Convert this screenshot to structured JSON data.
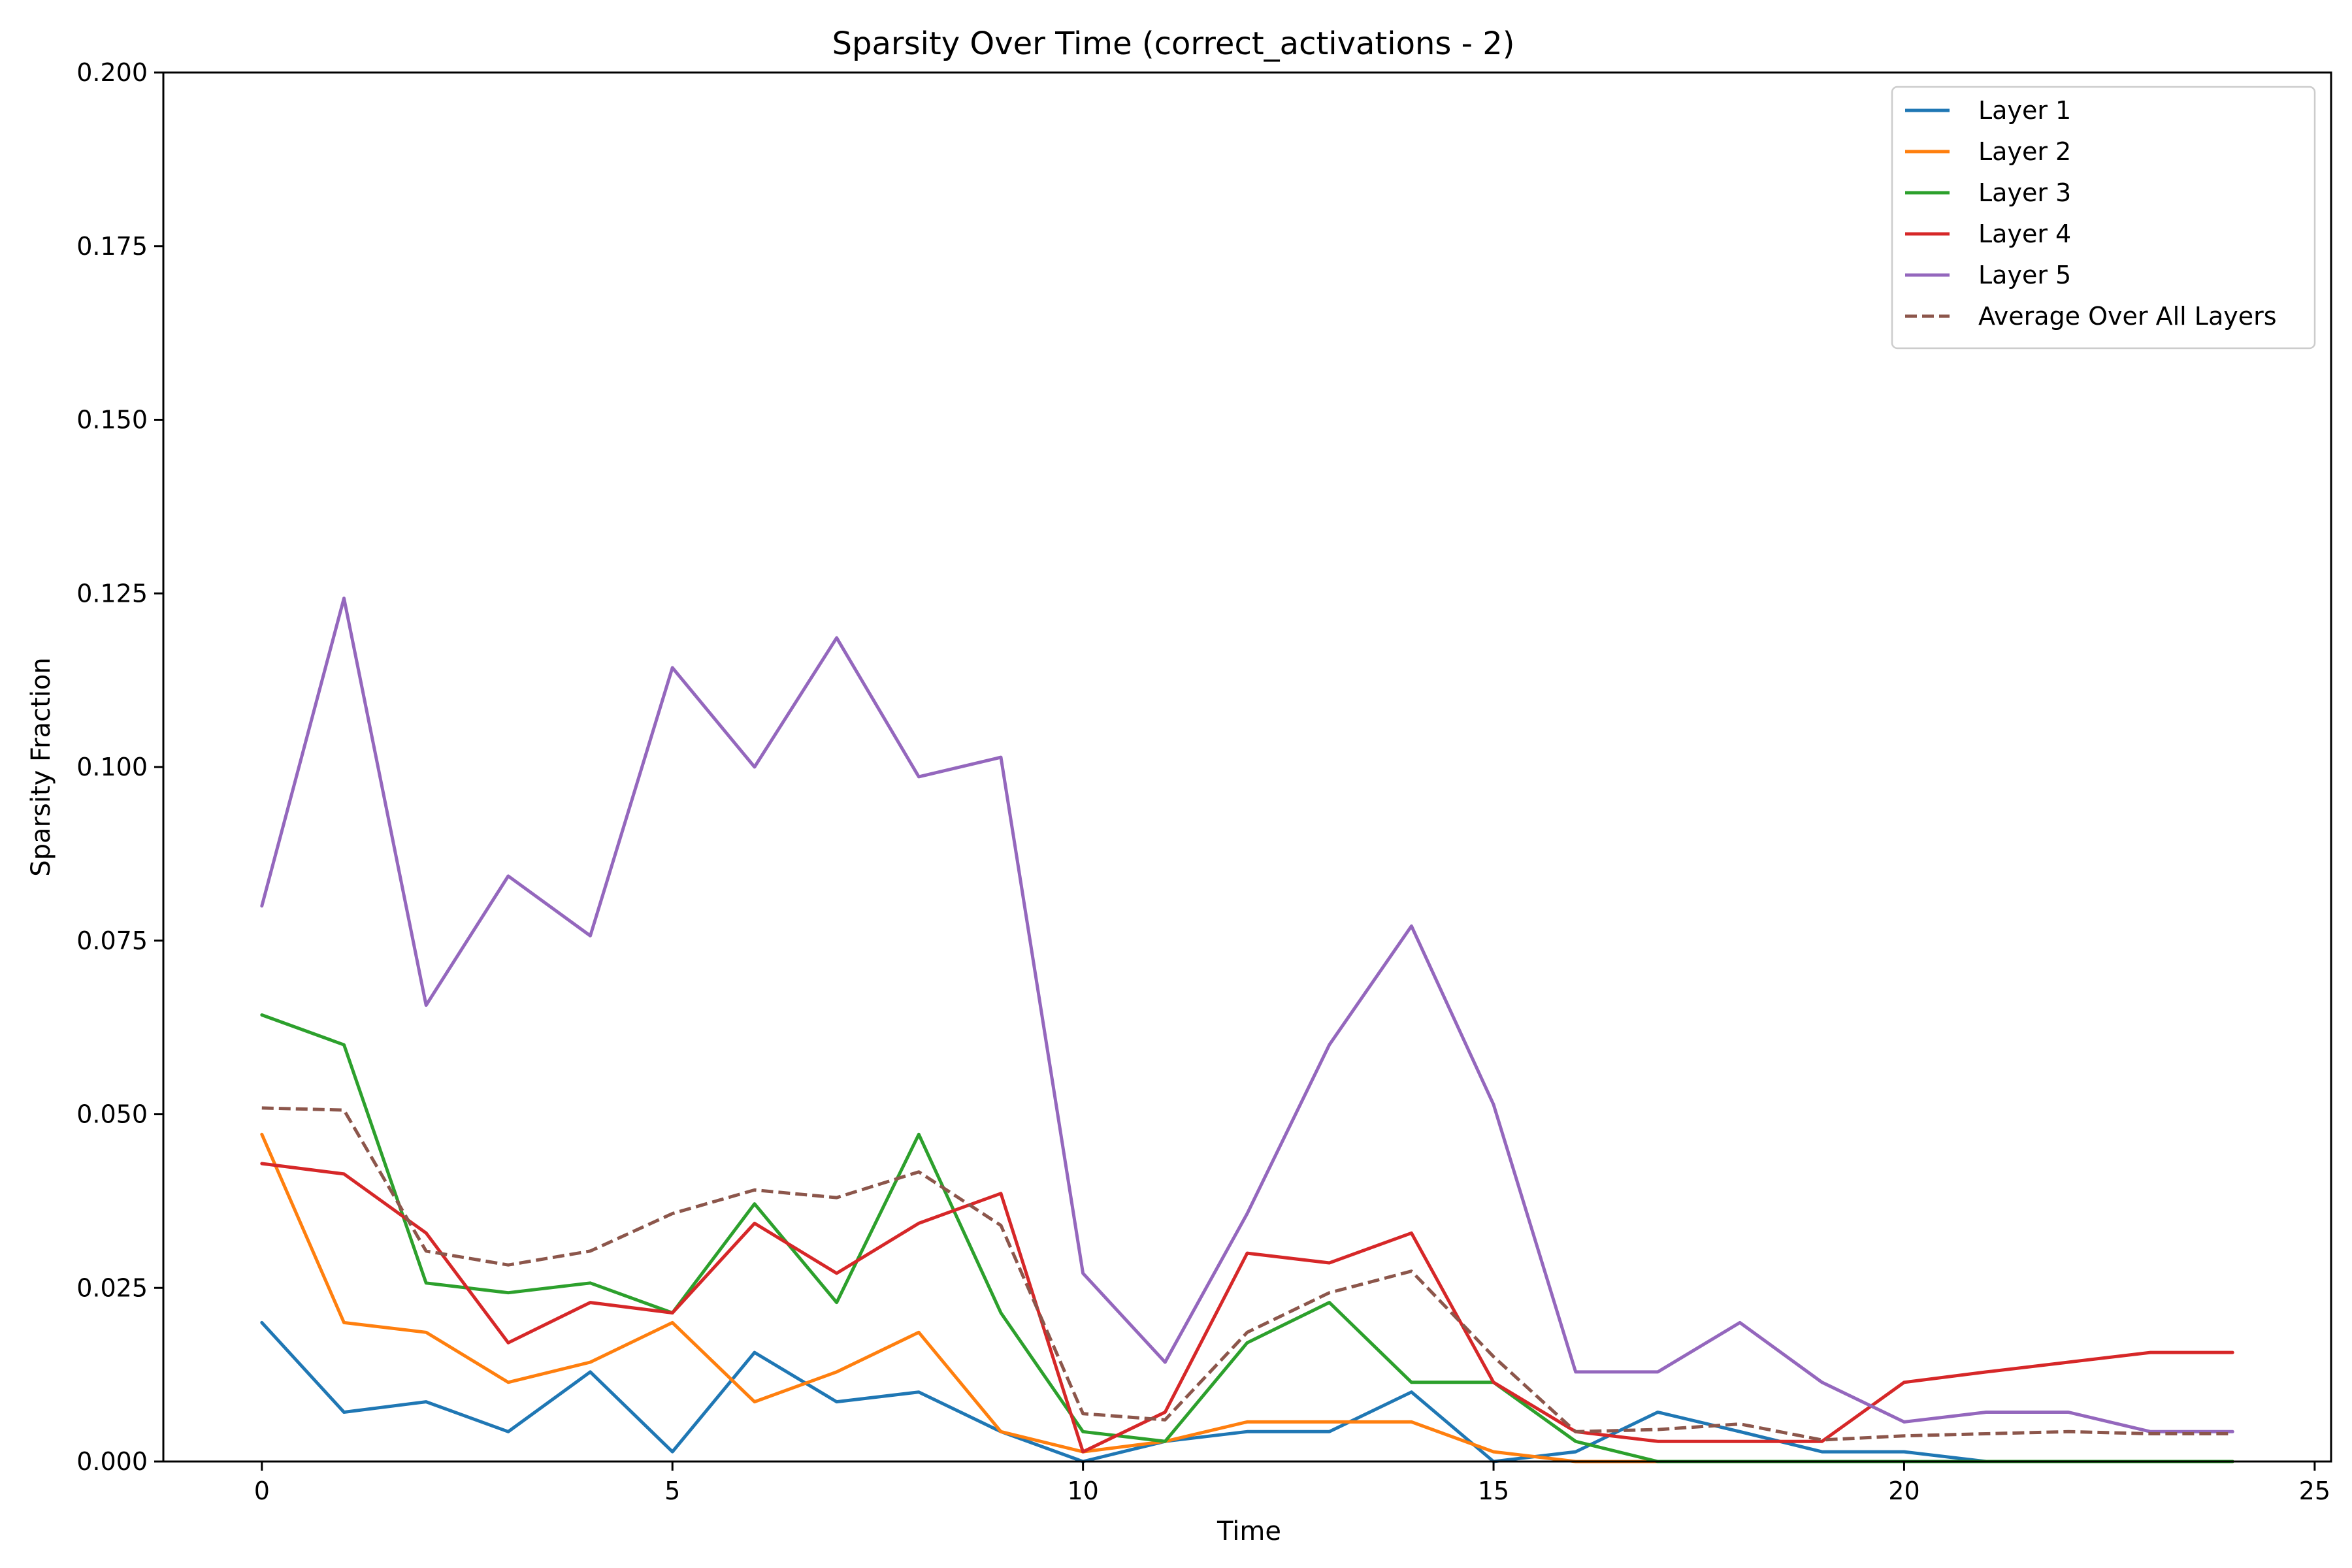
{
  "chart_data": {
    "type": "line",
    "title": "Sparsity Over Time (correct_activations - 2)",
    "xlabel": "Time",
    "ylabel": "Sparsity Fraction",
    "xlim": [
      -1.2,
      25.2
    ],
    "ylim": [
      0,
      0.2
    ],
    "xticks": [
      0,
      5,
      10,
      15,
      20,
      25
    ],
    "xtick_labels": [
      "0",
      "5",
      "10",
      "15",
      "20",
      "25"
    ],
    "yticks": [
      0,
      0.025,
      0.05,
      0.075,
      0.1,
      0.125,
      0.15,
      0.175,
      0.2
    ],
    "ytick_labels": [
      "0.000",
      "0.025",
      "0.050",
      "0.075",
      "0.100",
      "0.125",
      "0.150",
      "0.175",
      "0.200"
    ],
    "grid": false,
    "legend_position": "top-right",
    "x": [
      0,
      1,
      2,
      3,
      4,
      5,
      6,
      7,
      8,
      9,
      10,
      11,
      12,
      13,
      14,
      15,
      16,
      17,
      18,
      19,
      20,
      21,
      22,
      23,
      24
    ],
    "series": [
      {
        "name": "Layer 1",
        "color": "#1f77b4",
        "dashed": false,
        "values": [
          0.02,
          0.0071,
          0.0086,
          0.0043,
          0.0129,
          0.0014,
          0.0157,
          0.0086,
          0.01,
          0.0043,
          0.0,
          0.0029,
          0.0043,
          0.0043,
          0.01,
          0.0,
          0.0014,
          0.0071,
          0.0043,
          0.0014,
          0.0014,
          0.0,
          0.0,
          0.0,
          0.0
        ]
      },
      {
        "name": "Layer 2",
        "color": "#ff7f0e",
        "dashed": false,
        "values": [
          0.0471,
          0.02,
          0.0186,
          0.0114,
          0.0143,
          0.02,
          0.0086,
          0.0129,
          0.0186,
          0.0043,
          0.0014,
          0.0029,
          0.0057,
          0.0057,
          0.0057,
          0.0014,
          0.0,
          0.0,
          0.0,
          0.0,
          0.0,
          0.0,
          0.0,
          0.0,
          0.0
        ]
      },
      {
        "name": "Layer 3",
        "color": "#2ca02c",
        "dashed": false,
        "values": [
          0.0643,
          0.06,
          0.0257,
          0.0243,
          0.0257,
          0.0214,
          0.0371,
          0.0229,
          0.0471,
          0.0214,
          0.0043,
          0.0029,
          0.0171,
          0.0229,
          0.0114,
          0.0114,
          0.0029,
          0.0,
          0.0,
          0.0,
          0.0,
          0.0,
          0.0,
          0.0,
          0.0
        ]
      },
      {
        "name": "Layer 4",
        "color": "#d62728",
        "dashed": false,
        "values": [
          0.0429,
          0.0414,
          0.0329,
          0.0171,
          0.0229,
          0.0214,
          0.0343,
          0.0271,
          0.0343,
          0.0386,
          0.0014,
          0.0071,
          0.03,
          0.0286,
          0.0329,
          0.0114,
          0.0043,
          0.0029,
          0.0029,
          0.0029,
          0.0114,
          0.0129,
          0.0143,
          0.0157,
          0.0157
        ]
      },
      {
        "name": "Layer 5",
        "color": "#9467bd",
        "dashed": false,
        "values": [
          0.08,
          0.1243,
          0.0657,
          0.0843,
          0.0757,
          0.1143,
          0.1,
          0.1186,
          0.0986,
          0.1014,
          0.0271,
          0.0143,
          0.0357,
          0.06,
          0.0771,
          0.0514,
          0.0129,
          0.0129,
          0.02,
          0.0114,
          0.0057,
          0.0071,
          0.0071,
          0.0043,
          0.0043
        ]
      },
      {
        "name": "Average Over All Layers",
        "color": "#8c564b",
        "dashed": true,
        "values": [
          0.0509,
          0.0506,
          0.0303,
          0.0283,
          0.0303,
          0.0357,
          0.0391,
          0.038,
          0.0417,
          0.034,
          0.0069,
          0.006,
          0.0186,
          0.0243,
          0.0274,
          0.0151,
          0.0043,
          0.0046,
          0.0054,
          0.0031,
          0.0037,
          0.004,
          0.0043,
          0.004,
          0.004
        ]
      }
    ]
  }
}
